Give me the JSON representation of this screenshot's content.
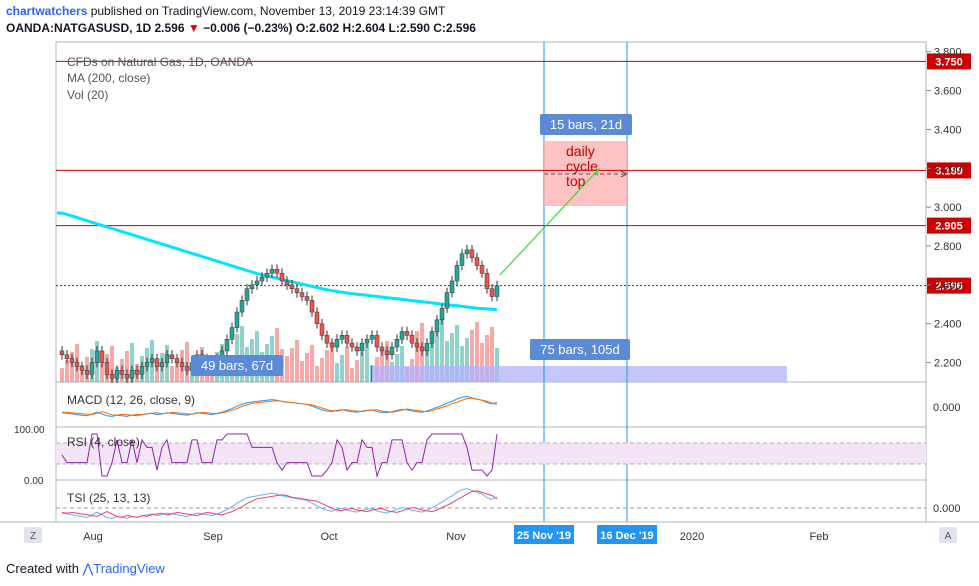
{
  "header": {
    "author": "chartwatchers",
    "published_text": " published on TradingView.com, November 13, 2019 23:14:39 GMT",
    "symbol": "OANDA:NATGASUSD, 1D",
    "price": "2.596",
    "change": "−0.006 (−0.23%)",
    "ohlc": "O:2.602 H:2.604 L:2.590 C:2.596"
  },
  "legend": {
    "title": "CFDs on Natural Gas, 1D, OANDA",
    "ma": "MA (200, close)",
    "vol": "Vol (20)"
  },
  "indicators": {
    "macd": "MACD (12, 26, close, 9)",
    "rsi": "RSI (4, close)",
    "tsi": "TSI (25, 13, 13)"
  },
  "annotations": {
    "bars_short": "49 bars, 67d",
    "bars_long": "75 bars, 105d",
    "bars_top": "15 bars, 21d",
    "cycle_note": "daily cycle top"
  },
  "footer": {
    "created_with": "Created with",
    "brand": "TradingView"
  },
  "colors": {
    "up": "#26a69a",
    "down": "#ef5350",
    "ma": "#00e5ff",
    "hline": "#cc0000",
    "vline": "#2196f3",
    "range_fill": "#b3b3ff",
    "target_fill": "#ffb3b3",
    "tag_blue": "#5b8bd6"
  },
  "chart_data": {
    "type": "candlestick",
    "price_axis": {
      "min": 2.1,
      "max": 3.85,
      "ticks": [
        "2.200",
        "2.400",
        "2.600",
        "2.800",
        "3.000",
        "3.200",
        "3.400",
        "3.600",
        "3.800"
      ]
    },
    "time_axis": [
      "Aug",
      "Sep",
      "Oct",
      "Nov",
      "Dec",
      "2020",
      "Feb"
    ],
    "date_tags": [
      "25 Nov '19",
      "16 Dec '19"
    ],
    "horizontal_levels": [
      {
        "label": "3.750",
        "value": 3.75
      },
      {
        "label": "3.189",
        "value": 3.189
      },
      {
        "label": "2.905",
        "value": 2.905
      },
      {
        "label": "2.596",
        "value": 2.596
      }
    ],
    "macd_axis_label": "0.000",
    "rsi_axis_labels": [
      "100.00",
      "0.00"
    ],
    "tsi_axis_label": "0.000",
    "close_series": [
      2.24,
      2.22,
      2.2,
      2.18,
      2.16,
      2.14,
      2.2,
      2.26,
      2.2,
      2.14,
      2.12,
      2.16,
      2.14,
      2.12,
      2.16,
      2.14,
      2.18,
      2.2,
      2.22,
      2.18,
      2.2,
      2.24,
      2.22,
      2.2,
      2.18,
      2.16,
      2.2,
      2.24,
      2.22,
      2.2,
      2.18,
      2.22,
      2.26,
      2.32,
      2.38,
      2.46,
      2.52,
      2.58,
      2.6,
      2.62,
      2.64,
      2.66,
      2.68,
      2.66,
      2.62,
      2.6,
      2.58,
      2.56,
      2.54,
      2.52,
      2.46,
      2.4,
      2.34,
      2.3,
      2.28,
      2.32,
      2.34,
      2.3,
      2.28,
      2.26,
      2.3,
      2.32,
      2.34,
      2.28,
      2.26,
      2.24,
      2.28,
      2.32,
      2.36,
      2.34,
      2.3,
      2.28,
      2.26,
      2.3,
      2.36,
      2.42,
      2.48,
      2.56,
      2.62,
      2.7,
      2.76,
      2.78,
      2.74,
      2.7,
      2.66,
      2.58,
      2.54,
      2.596
    ],
    "ma_series": [
      2.97,
      2.962,
      2.954,
      2.946,
      2.938,
      2.93,
      2.922,
      2.914,
      2.906,
      2.898,
      2.89,
      2.882,
      2.874,
      2.866,
      2.858,
      2.85,
      2.842,
      2.834,
      2.826,
      2.818,
      2.81,
      2.802,
      2.794,
      2.786,
      2.778,
      2.77,
      2.762,
      2.754,
      2.746,
      2.738,
      2.73,
      2.722,
      2.714,
      2.706,
      2.698,
      2.69,
      2.682,
      2.674,
      2.666,
      2.658,
      2.652,
      2.646,
      2.64,
      2.634,
      2.628,
      2.622,
      2.616,
      2.61,
      2.604,
      2.598,
      2.592,
      2.586,
      2.58,
      2.575,
      2.57,
      2.566,
      2.562,
      2.558,
      2.555,
      2.552,
      2.549,
      2.546,
      2.543,
      2.54,
      2.537,
      2.534,
      2.531,
      2.528,
      2.525,
      2.522,
      2.519,
      2.516,
      2.513,
      2.51,
      2.507,
      2.504,
      2.501,
      2.498,
      2.495,
      2.492,
      2.489,
      2.486,
      2.483,
      2.48,
      2.478,
      2.476,
      2.474,
      2.472
    ]
  }
}
